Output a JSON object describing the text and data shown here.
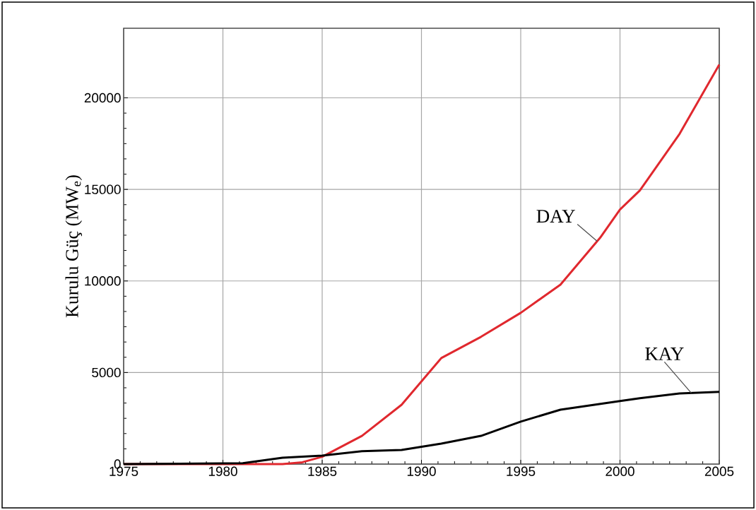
{
  "chart_data": {
    "type": "line",
    "ylabel": "Kurulu Güç (MW$_{e}$)",
    "xlim": [
      1975,
      2005
    ],
    "xticks": [
      1975,
      1980,
      1985,
      1990,
      1995,
      2000,
      2005
    ],
    "ylim": [
      0,
      23800
    ],
    "yticks": [
      0,
      5000,
      10000,
      15000,
      20000
    ],
    "grid": true,
    "series": [
      {
        "name": "DAY",
        "color": "#e0282e",
        "x": [
          1975,
          1983,
          1984,
          1985,
          1987,
          1989,
          1991,
          1993,
          1995,
          1997,
          1999,
          2000,
          2001,
          2003,
          2005
        ],
        "values": [
          0,
          0,
          100,
          400,
          1540,
          3240,
          5790,
          6950,
          8260,
          9800,
          12360,
          13900,
          14940,
          18030,
          21810
        ]
      },
      {
        "name": "KAY",
        "color": "#000000",
        "x": [
          1975,
          1981,
          1983,
          1985,
          1987,
          1989,
          1991,
          1993,
          1995,
          1997,
          2000,
          2001,
          2003,
          2005
        ],
        "values": [
          0,
          50,
          350,
          460,
          700,
          770,
          1120,
          1540,
          2320,
          2970,
          3440,
          3600,
          3860,
          3940
        ]
      }
    ]
  }
}
